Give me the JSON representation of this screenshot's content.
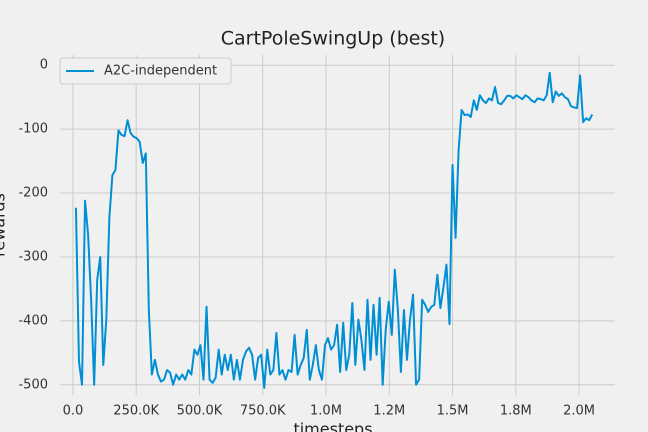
{
  "chart_data": {
    "type": "line",
    "title": "CartPoleSwingUp (best)",
    "xlabel": "timesteps",
    "ylabel": "rewards",
    "xlim": [
      -51000,
      2142000
    ],
    "ylim": [
      -516,
      16
    ],
    "xticks": [
      {
        "value": 0,
        "label": "0.0"
      },
      {
        "value": 250000,
        "label": "250.0K"
      },
      {
        "value": 500000,
        "label": "500.0K"
      },
      {
        "value": 750000,
        "label": "750.0K"
      },
      {
        "value": 1000000,
        "label": "1.0M"
      },
      {
        "value": 1250000,
        "label": "1.2M"
      },
      {
        "value": 1500000,
        "label": "1.5M"
      },
      {
        "value": 1750000,
        "label": "1.8M"
      },
      {
        "value": 2000000,
        "label": "2.0M"
      }
    ],
    "yticks": [
      -500,
      -400,
      -300,
      -200,
      -100,
      0
    ],
    "grid": true,
    "legend": "upper-left",
    "x": [
      12000,
      24000,
      36000,
      48000,
      60000,
      72000,
      84000,
      96000,
      108000,
      120000,
      132000,
      144000,
      156000,
      168000,
      180000,
      192000,
      204000,
      216000,
      228000,
      240000,
      252000,
      264000,
      276000,
      288000,
      300000,
      312000,
      324000,
      336000,
      348000,
      360000,
      372000,
      384000,
      396000,
      408000,
      420000,
      432000,
      444000,
      456000,
      468000,
      480000,
      492000,
      504000,
      516000,
      528000,
      540000,
      552000,
      564000,
      576000,
      588000,
      600000,
      612000,
      624000,
      636000,
      648000,
      660000,
      672000,
      684000,
      696000,
      708000,
      720000,
      732000,
      744000,
      756000,
      768000,
      780000,
      792000,
      804000,
      816000,
      828000,
      840000,
      852000,
      864000,
      876000,
      888000,
      900000,
      912000,
      924000,
      936000,
      948000,
      960000,
      972000,
      984000,
      996000,
      1008000,
      1020000,
      1032000,
      1044000,
      1056000,
      1068000,
      1080000,
      1092000,
      1104000,
      1116000,
      1128000,
      1140000,
      1152000,
      1164000,
      1176000,
      1188000,
      1200000,
      1212000,
      1224000,
      1236000,
      1248000,
      1260000,
      1272000,
      1284000,
      1296000,
      1308000,
      1320000,
      1332000,
      1344000,
      1356000,
      1368000,
      1380000,
      1392000,
      1404000,
      1416000,
      1428000,
      1440000,
      1452000,
      1464000,
      1476000,
      1488000,
      1500000,
      1512000,
      1524000,
      1536000,
      1548000,
      1560000,
      1572000,
      1584000,
      1596000,
      1608000,
      1620000,
      1632000,
      1644000,
      1656000,
      1668000,
      1680000,
      1692000,
      1704000,
      1716000,
      1728000,
      1740000,
      1752000,
      1764000,
      1776000,
      1788000,
      1800000,
      1812000,
      1824000,
      1836000,
      1848000,
      1860000,
      1872000,
      1884000,
      1896000,
      1908000,
      1920000,
      1932000,
      1944000,
      1956000,
      1968000,
      1980000,
      1992000,
      2004000,
      2016000,
      2028000,
      2040000,
      2052000
    ],
    "series": [
      {
        "name": "A2C-independent",
        "color": "#008fd5",
        "values": [
          -223,
          -464,
          -500,
          -212,
          -265,
          -367,
          -500,
          -336,
          -300,
          -469,
          -398,
          -239,
          -172,
          -164,
          -102,
          -109,
          -111,
          -86,
          -106,
          -112,
          -114,
          -120,
          -153,
          -138,
          -383,
          -484,
          -461,
          -484,
          -495,
          -492,
          -477,
          -481,
          -500,
          -484,
          -492,
          -484,
          -492,
          -477,
          -484,
          -445,
          -453,
          -438,
          -492,
          -378,
          -492,
          -497,
          -489,
          -445,
          -484,
          -453,
          -477,
          -453,
          -492,
          -461,
          -492,
          -461,
          -448,
          -442,
          -453,
          -492,
          -458,
          -453,
          -505,
          -445,
          -484,
          -477,
          -419,
          -484,
          -477,
          -492,
          -477,
          -480,
          -422,
          -484,
          -469,
          -458,
          -414,
          -492,
          -469,
          -438,
          -477,
          -492,
          -438,
          -427,
          -445,
          -438,
          -406,
          -480,
          -403,
          -477,
          -453,
          -372,
          -469,
          -398,
          -430,
          -477,
          -367,
          -461,
          -375,
          -453,
          -364,
          -500,
          -414,
          -370,
          -422,
          -320,
          -383,
          -480,
          -383,
          -461,
          -398,
          -359,
          -500,
          -492,
          -367,
          -375,
          -386,
          -378,
          -375,
          -328,
          -380,
          -348,
          -312,
          -405,
          -156,
          -270,
          -133,
          -70,
          -78,
          -77,
          -81,
          -55,
          -70,
          -47,
          -55,
          -59,
          -52,
          -55,
          -34,
          -59,
          -61,
          -55,
          -48,
          -48,
          -52,
          -47,
          -50,
          -53,
          -47,
          -50,
          -55,
          -58,
          -52,
          -53,
          -55,
          -47,
          -12,
          -58,
          -41,
          -48,
          -44,
          -50,
          -53,
          -64,
          -66,
          -67,
          -16,
          -89,
          -83,
          -86,
          -77
        ]
      }
    ]
  }
}
